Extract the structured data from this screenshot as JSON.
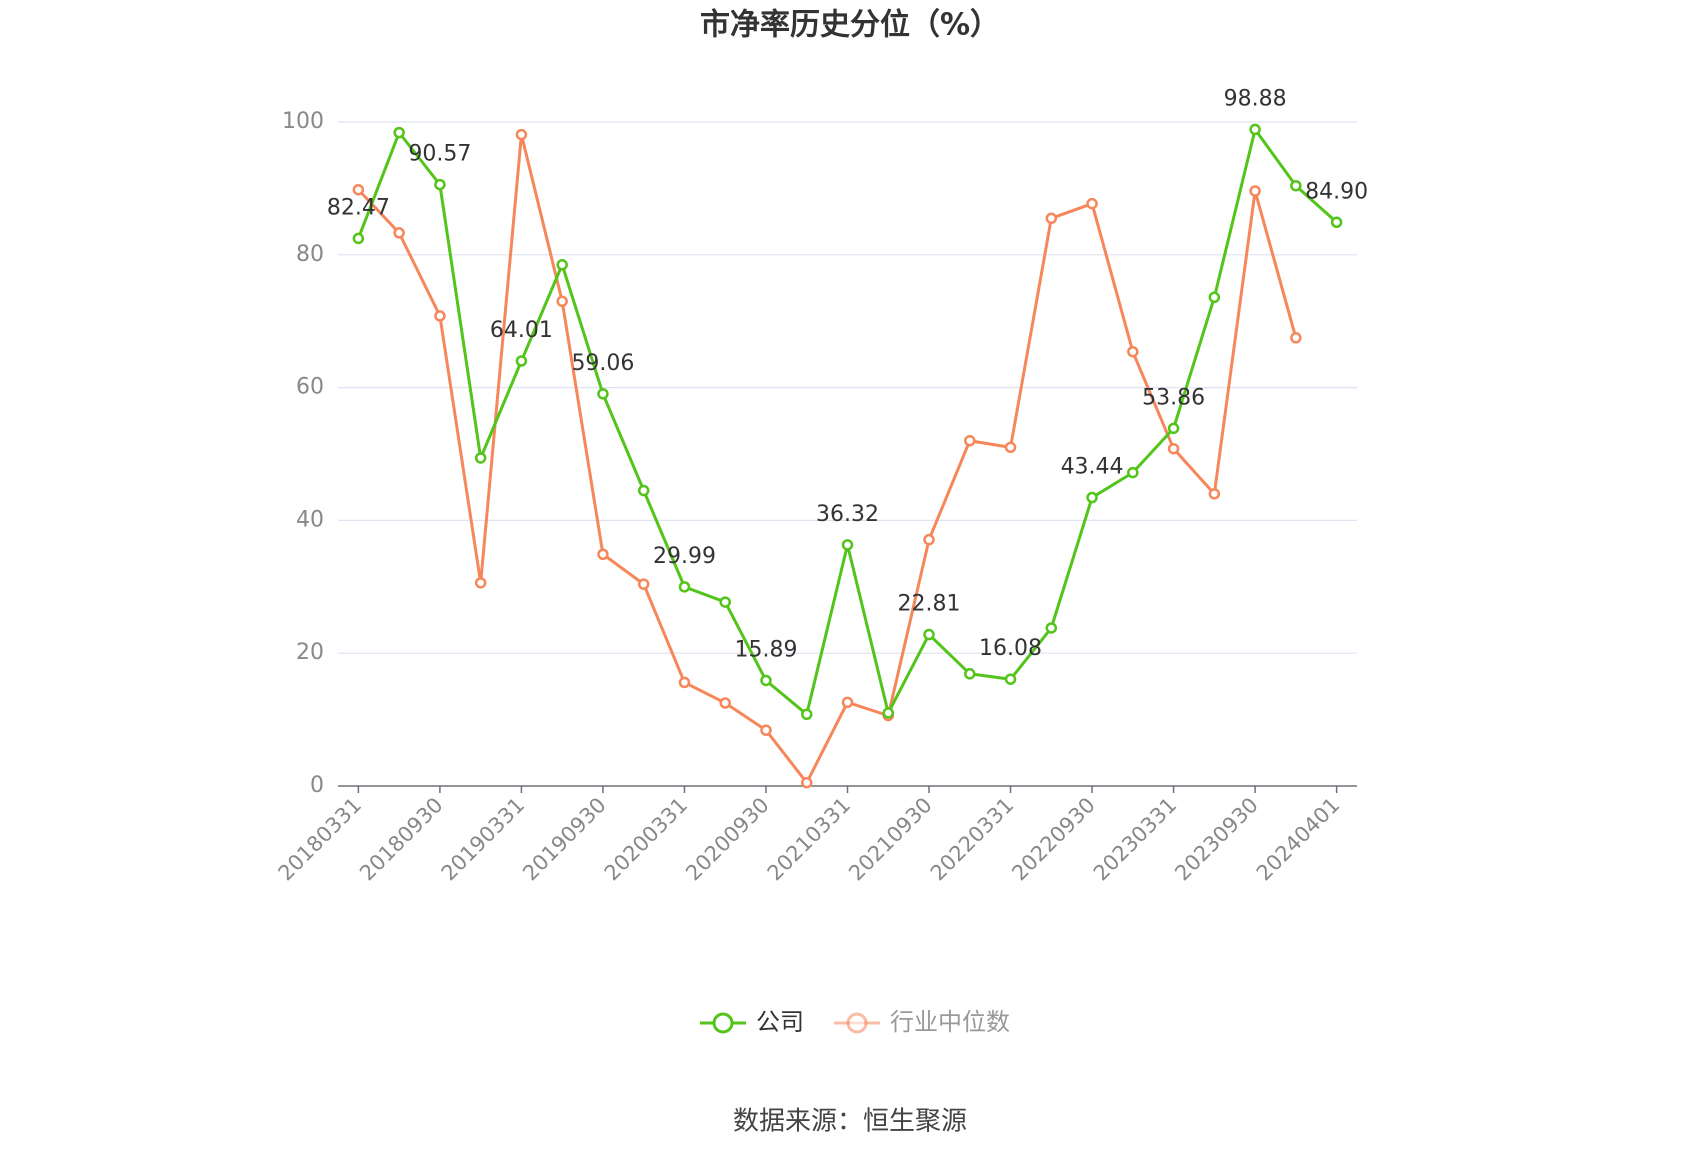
{
  "chart_data": {
    "type": "line",
    "title": "市净率历史分位（%）",
    "categories": [
      "20180331",
      null,
      "20180930",
      null,
      "20190331",
      null,
      "20190930",
      null,
      "20200331",
      null,
      "20200930",
      null,
      "20210331",
      null,
      "20210930",
      null,
      "20220331",
      null,
      "20220930",
      null,
      "20230331",
      null,
      "20230930",
      null,
      "20240401"
    ],
    "series": [
      {
        "name": "公司",
        "color": "#52c41a",
        "values": [
          82.47,
          98.4,
          90.57,
          49.4,
          64.01,
          78.5,
          59.06,
          44.5,
          29.99,
          27.7,
          15.89,
          10.8,
          36.32,
          11.0,
          22.81,
          16.9,
          16.08,
          23.8,
          43.44,
          47.2,
          53.86,
          73.6,
          98.88,
          90.4,
          84.9
        ],
        "value_labels": [
          "82.47",
          null,
          "90.57",
          null,
          "64.01",
          null,
          "59.06",
          null,
          "29.99",
          null,
          "15.89",
          null,
          "36.32",
          null,
          "22.81",
          null,
          "16.08",
          null,
          "43.44",
          null,
          "53.86",
          null,
          "98.88",
          null,
          "84.90"
        ]
      },
      {
        "name": "行业中位数",
        "color": "#f5875a",
        "values": [
          89.8,
          83.3,
          70.8,
          30.6,
          98.1,
          73.0,
          34.9,
          30.4,
          15.6,
          12.5,
          8.4,
          0.5,
          12.6,
          10.6,
          37.1,
          52.0,
          51.0,
          85.5,
          87.7,
          65.4,
          50.8,
          44.0,
          89.6,
          67.5,
          null
        ]
      }
    ],
    "ylim": [
      0,
      100
    ],
    "yticks": [
      0,
      20,
      40,
      60,
      80,
      100
    ],
    "grid": true,
    "legend": "bottom",
    "source": "数据来源：恒生聚源"
  }
}
